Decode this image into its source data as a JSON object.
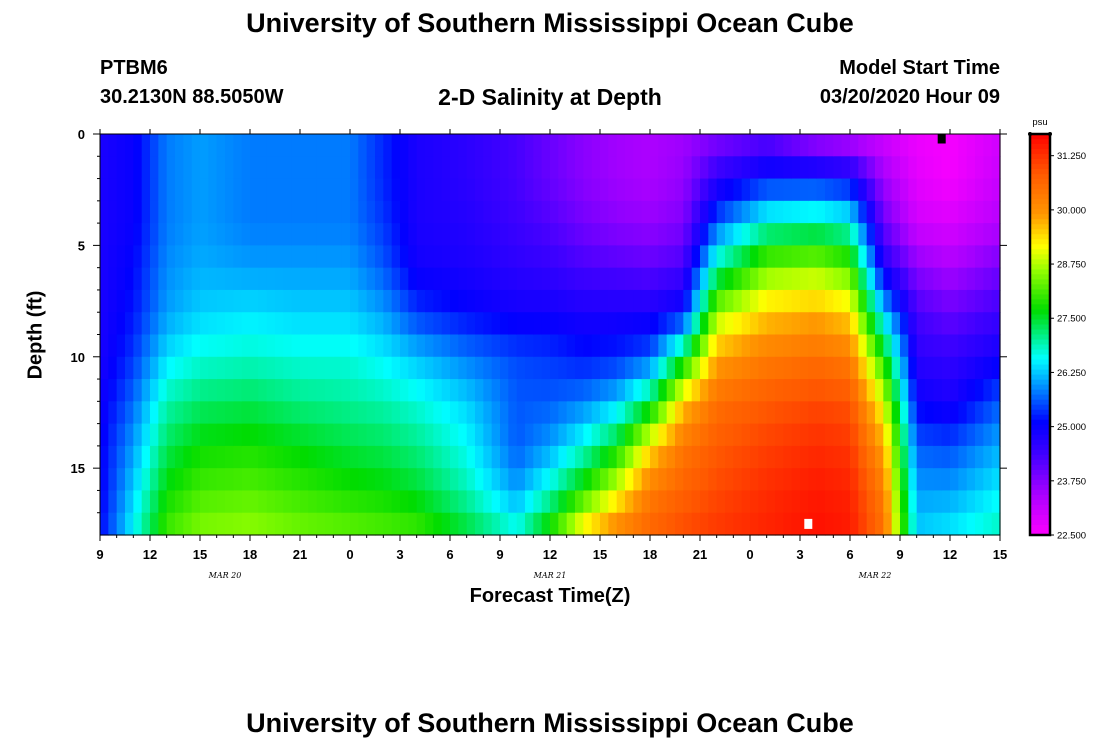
{
  "page_title": "University of Southern Mississippi Ocean Cube",
  "footer_title": "University of Southern Mississippi Ocean Cube",
  "station": {
    "id": "PTBM6",
    "coordinates": "30.2130N 88.5050W"
  },
  "model_start": {
    "label": "Model Start Time",
    "value": "03/20/2020 Hour 09"
  },
  "colors": {
    "scale_min": "#ff00ff",
    "scale_max": "#ff0000",
    "marker_dark": "#000000",
    "marker_light": "#ffffff"
  },
  "chart_data": {
    "type": "heatmap",
    "title": "2-D Salinity at Depth",
    "xlabel": "Forecast Time(Z)",
    "ylabel": "Depth (ft)",
    "x_tick_labels": [
      "9",
      "12",
      "15",
      "18",
      "21",
      "0",
      "3",
      "6",
      "9",
      "12",
      "15",
      "18",
      "21",
      "0",
      "3",
      "6",
      "9",
      "12",
      "15"
    ],
    "x_hours_since_start": [
      0,
      3,
      6,
      9,
      12,
      15,
      18,
      21,
      24,
      27,
      30,
      33,
      36,
      39,
      42,
      45,
      48,
      51,
      54
    ],
    "date_labels": [
      {
        "text": "MAR  20",
        "hour": 7.5
      },
      {
        "text": "MAR  21",
        "hour": 27
      },
      {
        "text": "MAR  22",
        "hour": 46.5
      }
    ],
    "xlim_hours": [
      0,
      54
    ],
    "y_ticks": [
      0,
      5,
      10,
      15
    ],
    "ylim": [
      0,
      18
    ],
    "y_inverted": true,
    "colorbar": {
      "unit": "psu",
      "min": 22.5,
      "max": 31.75,
      "tick_labels": [
        "31.250",
        "30.000",
        "28.750",
        "27.500",
        "26.250",
        "25.000",
        "23.750",
        "22.500"
      ],
      "tick_values": [
        31.25,
        30.0,
        28.75,
        27.5,
        26.25,
        25.0,
        23.75,
        22.5
      ]
    },
    "grid": false,
    "legend": "right",
    "salinity_profiles": [
      {
        "hour": 0,
        "depth": [
          0,
          2,
          4,
          6,
          8,
          10,
          12,
          14,
          16,
          18
        ],
        "psu": [
          24.8,
          24.8,
          24.8,
          24.8,
          24.8,
          24.8,
          24.9,
          25.0,
          25.0,
          25.1
        ]
      },
      {
        "hour": 2,
        "depth": [
          0,
          2,
          4,
          6,
          8,
          10,
          12,
          14,
          16,
          18
        ],
        "psu": [
          25.0,
          25.0,
          25.0,
          25.1,
          25.2,
          25.4,
          25.7,
          26.0,
          26.3,
          26.6
        ]
      },
      {
        "hour": 4,
        "depth": [
          0,
          2,
          4,
          6,
          8,
          10,
          12,
          14,
          16,
          18
        ],
        "psu": [
          25.8,
          25.8,
          25.8,
          25.9,
          26.0,
          26.4,
          26.9,
          27.3,
          27.7,
          28.1
        ]
      },
      {
        "hour": 6,
        "depth": [
          0,
          2,
          4,
          6,
          8,
          10,
          12,
          14,
          16,
          18
        ],
        "psu": [
          26.0,
          26.0,
          26.0,
          26.1,
          26.3,
          26.7,
          27.2,
          27.7,
          28.1,
          28.5
        ]
      },
      {
        "hour": 9,
        "depth": [
          0,
          2,
          4,
          6,
          8,
          10,
          12,
          14,
          16,
          18
        ],
        "psu": [
          25.8,
          25.8,
          25.8,
          26.0,
          26.4,
          26.8,
          27.3,
          27.8,
          28.2,
          28.6
        ]
      },
      {
        "hour": 12,
        "depth": [
          0,
          2,
          4,
          6,
          8,
          10,
          12,
          14,
          16,
          18
        ],
        "psu": [
          25.8,
          25.8,
          25.8,
          26.0,
          26.3,
          26.7,
          27.1,
          27.6,
          28.0,
          28.4
        ]
      },
      {
        "hour": 15,
        "depth": [
          0,
          2,
          4,
          6,
          8,
          10,
          12,
          14,
          16,
          18
        ],
        "psu": [
          25.8,
          25.8,
          25.8,
          26.0,
          26.3,
          26.7,
          27.0,
          27.4,
          27.8,
          28.3
        ]
      },
      {
        "hour": 17,
        "depth": [
          0,
          2,
          4,
          6,
          8,
          10,
          12,
          14,
          16,
          18
        ],
        "psu": [
          25.3,
          25.3,
          25.4,
          25.6,
          26.0,
          26.5,
          26.9,
          27.3,
          27.7,
          28.2
        ]
      },
      {
        "hour": 19,
        "depth": [
          0,
          2,
          4,
          6,
          8,
          10,
          12,
          14,
          16,
          18
        ],
        "psu": [
          24.8,
          24.8,
          24.8,
          24.9,
          25.4,
          26.2,
          26.7,
          27.1,
          27.5,
          28.1
        ]
      },
      {
        "hour": 22,
        "depth": [
          0,
          2,
          4,
          6,
          8,
          10,
          12,
          14,
          16,
          18
        ],
        "psu": [
          24.6,
          24.6,
          24.7,
          24.8,
          25.1,
          25.8,
          26.3,
          26.6,
          26.9,
          27.5
        ]
      },
      {
        "hour": 25,
        "depth": [
          0,
          2,
          4,
          6,
          8,
          10,
          12,
          14,
          16,
          18
        ],
        "psu": [
          24.3,
          24.3,
          24.4,
          24.6,
          24.9,
          25.5,
          25.6,
          25.6,
          26.0,
          26.8
        ]
      },
      {
        "hour": 27,
        "depth": [
          0,
          2,
          4,
          6,
          8,
          10,
          12,
          14,
          16,
          18
        ],
        "psu": [
          24.0,
          24.0,
          24.2,
          24.5,
          24.9,
          25.4,
          25.6,
          26.0,
          26.8,
          28.0
        ]
      },
      {
        "hour": 29,
        "depth": [
          0,
          2,
          4,
          6,
          8,
          10,
          12,
          14,
          16,
          18
        ],
        "psu": [
          23.7,
          23.7,
          23.9,
          24.3,
          24.8,
          25.2,
          25.8,
          26.7,
          27.9,
          29.5
        ]
      },
      {
        "hour": 31,
        "depth": [
          0,
          2,
          4,
          6,
          8,
          10,
          12,
          14,
          16,
          18
        ],
        "psu": [
          23.5,
          23.5,
          23.7,
          24.2,
          24.8,
          25.3,
          26.2,
          27.6,
          29.0,
          30.3
        ]
      },
      {
        "hour": 33,
        "depth": [
          0,
          2,
          4,
          6,
          8,
          10,
          12,
          14,
          16,
          18
        ],
        "psu": [
          23.4,
          23.4,
          23.6,
          24.1,
          24.8,
          25.6,
          27.3,
          29.3,
          30.3,
          30.7
        ]
      },
      {
        "hour": 35,
        "depth": [
          0,
          2,
          4,
          6,
          8,
          10,
          12,
          14,
          16,
          18
        ],
        "psu": [
          23.5,
          23.6,
          23.8,
          24.3,
          25.1,
          27.4,
          29.5,
          30.4,
          30.7,
          31.0
        ]
      },
      {
        "hour": 37,
        "depth": [
          0,
          2,
          4,
          6,
          8,
          10,
          12,
          14,
          16,
          18
        ],
        "psu": [
          23.7,
          24.6,
          25.6,
          27.0,
          28.6,
          29.8,
          30.5,
          30.8,
          31.0,
          31.2
        ]
      },
      {
        "hour": 40,
        "depth": [
          0,
          2,
          4,
          6,
          8,
          10,
          12,
          14,
          16,
          18
        ],
        "psu": [
          24.0,
          25.2,
          26.8,
          28.4,
          29.5,
          30.3,
          30.8,
          31.1,
          31.3,
          31.4
        ]
      },
      {
        "hour": 43,
        "depth": [
          0,
          2,
          4,
          6,
          8,
          10,
          12,
          14,
          16,
          18
        ],
        "psu": [
          23.3,
          25.2,
          27.0,
          28.6,
          29.7,
          30.5,
          31.0,
          31.3,
          31.5,
          31.6
        ]
      },
      {
        "hour": 45,
        "depth": [
          0,
          2,
          4,
          6,
          8,
          10,
          12,
          14,
          16,
          18
        ],
        "psu": [
          23.1,
          25.0,
          26.7,
          28.2,
          29.4,
          30.3,
          30.9,
          31.2,
          31.4,
          31.5
        ]
      },
      {
        "hour": 47,
        "depth": [
          0,
          2,
          4,
          6,
          8,
          10,
          12,
          14,
          16,
          18
        ],
        "psu": [
          23.0,
          23.5,
          24.0,
          24.8,
          26.3,
          27.8,
          29.0,
          29.8,
          30.3,
          30.5
        ]
      },
      {
        "hour": 49,
        "depth": [
          0,
          2,
          4,
          6,
          8,
          10,
          12,
          14,
          16,
          18
        ],
        "psu": [
          22.7,
          22.8,
          23.0,
          23.7,
          24.3,
          24.6,
          25.0,
          25.6,
          26.0,
          26.3
        ]
      },
      {
        "hour": 51,
        "depth": [
          0,
          2,
          4,
          6,
          8,
          10,
          12,
          14,
          16,
          18
        ],
        "psu": [
          22.6,
          22.6,
          22.9,
          23.4,
          24.0,
          24.5,
          24.8,
          25.5,
          26.0,
          26.5
        ]
      },
      {
        "hour": 54,
        "depth": [
          0,
          2,
          4,
          6,
          8,
          10,
          12,
          14,
          16,
          18
        ],
        "psu": [
          23.0,
          23.1,
          23.3,
          23.9,
          24.4,
          24.9,
          25.6,
          26.1,
          26.5,
          26.9
        ]
      }
    ],
    "markers": [
      {
        "hour": 50.5,
        "depth": 0.2,
        "color": "dark"
      },
      {
        "hour": 42.5,
        "depth": 17.5,
        "color": "light"
      }
    ]
  }
}
